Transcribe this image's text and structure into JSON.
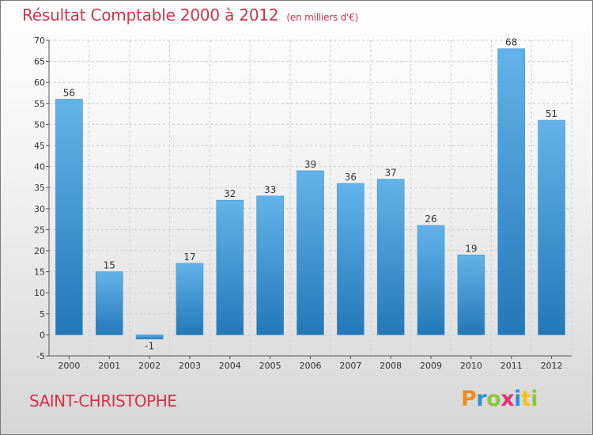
{
  "header": {
    "title": "Résultat Comptable 2000 à 2012",
    "unit": "(en milliers d'€)"
  },
  "footer": {
    "town": "SAINT-CHRISTOPHE",
    "logo": {
      "letters": [
        "P",
        "r",
        "o",
        "x",
        "i",
        "t",
        "i"
      ],
      "colors": [
        "#f28c1e",
        "#2f8fd8",
        "#8cc63f",
        "#e8316e",
        "#2f8fd8",
        "#f2c31e",
        "#8cc63f"
      ]
    }
  },
  "colors": {
    "bar_top": "#63b3ea",
    "bar_bottom": "#2378b8",
    "grid": "#cfcfcf",
    "title": "#d1324a"
  },
  "chart_data": {
    "type": "bar",
    "title": "Résultat Comptable 2000 à 2012",
    "xlabel": "",
    "ylabel": "",
    "categories": [
      "2000",
      "2001",
      "2002",
      "2003",
      "2004",
      "2005",
      "2006",
      "2007",
      "2008",
      "2009",
      "2010",
      "2011",
      "2012"
    ],
    "values": [
      56,
      15,
      -1,
      17,
      32,
      33,
      39,
      36,
      37,
      26,
      19,
      68,
      51
    ],
    "data_labels": [
      "56",
      "15",
      "-1",
      "17",
      "32",
      "33",
      "39",
      "36",
      "37",
      "26",
      "19",
      "68",
      "51"
    ],
    "ylim": [
      -5,
      70
    ],
    "yticks": [
      -5,
      0,
      5,
      10,
      15,
      20,
      25,
      30,
      35,
      40,
      45,
      50,
      55,
      60,
      65,
      70
    ],
    "grid": true,
    "legend": "none"
  }
}
